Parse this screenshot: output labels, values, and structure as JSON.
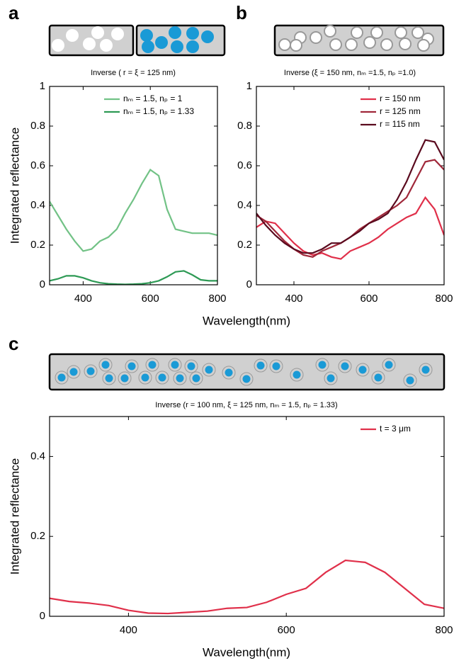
{
  "chart_data": [
    {
      "type": "line",
      "panel": "a",
      "title": "Inverse ( r = ξ = 125 nm)",
      "ylabel": "Integrated reflectance",
      "xlabel": "Wavelength(nm)",
      "x": [
        300,
        325,
        350,
        375,
        400,
        425,
        450,
        475,
        500,
        525,
        550,
        575,
        600,
        625,
        650,
        675,
        700,
        725,
        750,
        775,
        800
      ],
      "xlim": [
        300,
        800
      ],
      "xticks": [
        400,
        600,
        800
      ],
      "ylim": [
        0,
        1
      ],
      "yticks": [
        0,
        0.2,
        0.4,
        0.6,
        0.8,
        1
      ],
      "legend": "upper right",
      "series": [
        {
          "name": "nₘ = 1.5, nₚ = 1",
          "color": "#72c286",
          "values": [
            0.42,
            0.35,
            0.28,
            0.22,
            0.17,
            0.18,
            0.22,
            0.24,
            0.28,
            0.36,
            0.43,
            0.51,
            0.58,
            0.55,
            0.38,
            0.28,
            0.27,
            0.26,
            0.26,
            0.26,
            0.25
          ]
        },
        {
          "name": "nₘ = 1.5, nₚ = 1.33",
          "color": "#2e9a55",
          "values": [
            0.02,
            0.03,
            0.045,
            0.045,
            0.035,
            0.02,
            0.01,
            0.005,
            0.003,
            0.002,
            0.003,
            0.005,
            0.01,
            0.02,
            0.04,
            0.065,
            0.07,
            0.05,
            0.025,
            0.02,
            0.02
          ]
        }
      ]
    },
    {
      "type": "line",
      "panel": "b",
      "title": "Inverse (ξ = 150 nm, nₘ =1.5, nₚ =1.0)",
      "x": [
        300,
        325,
        350,
        375,
        400,
        425,
        450,
        475,
        500,
        525,
        550,
        575,
        600,
        625,
        650,
        675,
        700,
        725,
        750,
        775,
        800
      ],
      "xlim": [
        300,
        800
      ],
      "xticks": [
        400,
        600,
        800
      ],
      "ylim": [
        0,
        1
      ],
      "yticks": [
        0,
        0.2,
        0.4,
        0.6,
        0.8,
        1
      ],
      "legend": "upper right",
      "series": [
        {
          "name": "r = 150 nm",
          "color": "#e0304a",
          "values": [
            0.29,
            0.32,
            0.31,
            0.26,
            0.21,
            0.17,
            0.15,
            0.16,
            0.14,
            0.13,
            0.17,
            0.19,
            0.21,
            0.24,
            0.28,
            0.31,
            0.34,
            0.36,
            0.44,
            0.38,
            0.25
          ]
        },
        {
          "name": "r = 125 nm",
          "color": "#a0283a",
          "values": [
            0.35,
            0.32,
            0.27,
            0.22,
            0.18,
            0.15,
            0.14,
            0.17,
            0.19,
            0.21,
            0.24,
            0.28,
            0.31,
            0.34,
            0.37,
            0.4,
            0.44,
            0.53,
            0.62,
            0.63,
            0.58
          ]
        },
        {
          "name": "r = 115 nm",
          "color": "#5a0a1e",
          "values": [
            0.36,
            0.3,
            0.25,
            0.21,
            0.18,
            0.16,
            0.16,
            0.18,
            0.21,
            0.21,
            0.24,
            0.27,
            0.31,
            0.33,
            0.36,
            0.43,
            0.52,
            0.63,
            0.73,
            0.72,
            0.63
          ]
        }
      ]
    },
    {
      "type": "line",
      "panel": "c",
      "title": "Inverse (r = 100 nm, ξ = 125 nm, nₘ = 1.5, nₚ = 1.33)",
      "ylabel": "Integrated reflectance",
      "xlabel": "Wavelength(nm)",
      "x": [
        300,
        325,
        350,
        375,
        400,
        425,
        450,
        475,
        500,
        525,
        550,
        575,
        600,
        625,
        650,
        675,
        700,
        725,
        750,
        775,
        800
      ],
      "xlim": [
        300,
        800
      ],
      "xticks": [
        400,
        600,
        800
      ],
      "ylim": [
        0,
        0.5
      ],
      "yticks": [
        0,
        0.2,
        0.4
      ],
      "legend": "upper right",
      "series": [
        {
          "name": "t = 3 μm",
          "color": "#e0304a",
          "values": [
            0.045,
            0.037,
            0.033,
            0.027,
            0.015,
            0.008,
            0.007,
            0.01,
            0.013,
            0.02,
            0.022,
            0.035,
            0.055,
            0.07,
            0.11,
            0.14,
            0.135,
            0.11,
            0.07,
            0.03,
            0.02
          ]
        }
      ]
    }
  ]
}
